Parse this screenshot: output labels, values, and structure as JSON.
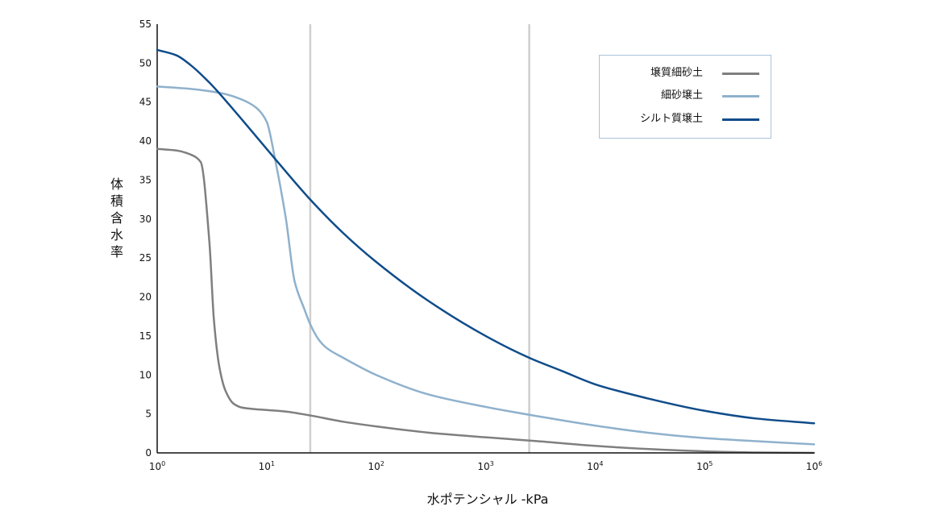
{
  "chart_data": {
    "type": "line",
    "xlabel": "水ポテンシャル -kPa",
    "ylabel": "体積含水率",
    "x_scale": "log",
    "xlim": [
      1,
      1000000
    ],
    "ylim": [
      0,
      55
    ],
    "x_ticks": [
      {
        "base": "10",
        "exp": "0"
      },
      {
        "base": "10",
        "exp": "1"
      },
      {
        "base": "10",
        "exp": "2"
      },
      {
        "base": "10",
        "exp": "3"
      },
      {
        "base": "10",
        "exp": "4"
      },
      {
        "base": "10",
        "exp": "5"
      },
      {
        "base": "10",
        "exp": "6"
      }
    ],
    "y_ticks": [
      "0",
      "5",
      "10",
      "15",
      "20",
      "25",
      "30",
      "35",
      "40",
      "45",
      "50",
      "55"
    ],
    "grid": false,
    "vertical_reference_lines_x": [
      25,
      2500
    ],
    "legend_position": "top-right",
    "series": [
      {
        "name": "壌質細砂土",
        "color": "#7f7f81",
        "x": [
          1,
          1.5,
          2,
          2.5,
          3,
          3.3,
          3.7,
          4.2,
          5,
          6,
          8,
          10,
          15,
          25,
          50,
          100,
          300,
          1000,
          3000,
          10000,
          30000,
          100000,
          300000,
          1000000
        ],
        "y": [
          39,
          38.8,
          38.3,
          37.3,
          27,
          17,
          11,
          8,
          6.3,
          5.8,
          5.6,
          5.5,
          5.3,
          4.8,
          4,
          3.4,
          2.6,
          2,
          1.5,
          0.9,
          0.5,
          0.2,
          0.05,
          0
        ]
      },
      {
        "name": "細砂壌土",
        "color": "#8fb1cc",
        "x": [
          1,
          2,
          4,
          6,
          8,
          10,
          12,
          15,
          18,
          22,
          25,
          30,
          35,
          50,
          100,
          300,
          1000,
          3000,
          10000,
          30000,
          100000,
          300000,
          1000000
        ],
        "y": [
          47,
          46.7,
          46.1,
          45.3,
          44.3,
          42.5,
          37.5,
          30,
          22,
          18.5,
          16.5,
          14.5,
          13.5,
          12.2,
          10,
          7.5,
          5.9,
          4.7,
          3.5,
          2.6,
          1.9,
          1.5,
          1.1
        ]
      },
      {
        "name": "シルト質壌土",
        "color": "#0f4c8a",
        "x": [
          1,
          1.5,
          2,
          3,
          5,
          10,
          25,
          50,
          100,
          300,
          1000,
          2500,
          5000,
          10000,
          30000,
          100000,
          300000,
          1000000
        ],
        "y": [
          51.7,
          51,
          49.8,
          47.5,
          44,
          39,
          32.5,
          28.2,
          24.5,
          19.5,
          15,
          12.2,
          10.5,
          8.8,
          7,
          5.4,
          4.4,
          3.8
        ]
      }
    ]
  }
}
